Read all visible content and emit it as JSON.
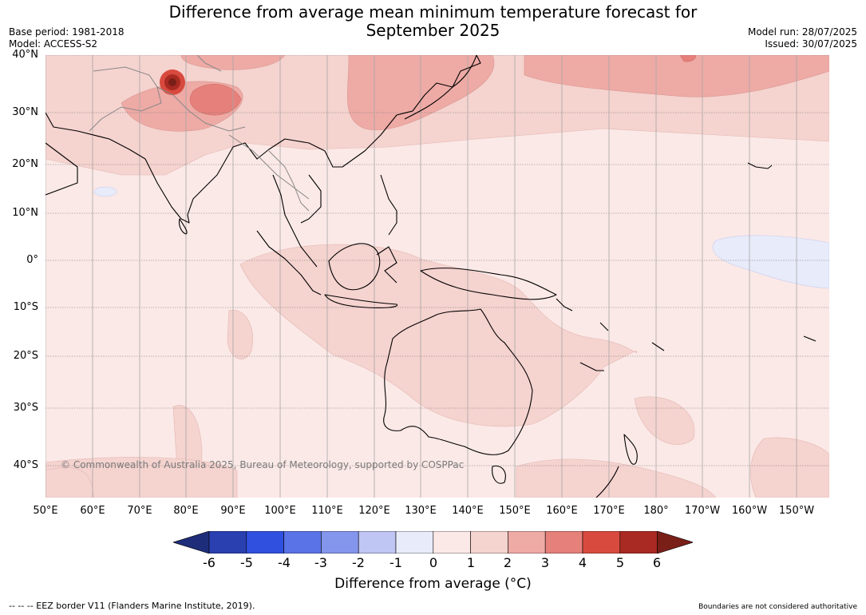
{
  "title_line1": "Difference from average mean minimum temperature forecast for",
  "title_line2": "September 2025",
  "base_period": "Base period: 1981-2018",
  "model": "Model: ACCESS-S2",
  "model_run": "Model run: 28/07/2025",
  "issued": "Issued: 30/07/2025",
  "copyright": "© Commonwealth of Australia 2025, Bureau of Meteorology, supported by COSPPac",
  "lat_labels": [
    "40°N",
    "30°N",
    "20°N",
    "10°N",
    "0°",
    "10°S",
    "20°S",
    "30°S",
    "40°S"
  ],
  "lon_labels": [
    "50°E",
    "60°E",
    "70°E",
    "80°E",
    "90°E",
    "100°E",
    "110°E",
    "120°E",
    "130°E",
    "140°E",
    "150°E",
    "160°E",
    "170°E",
    "180°",
    "170°W",
    "160°W",
    "150°W"
  ],
  "colorbar": {
    "ticks": [
      "-6",
      "-5",
      "-4",
      "-3",
      "-2",
      "-1",
      "0",
      "1",
      "2",
      "3",
      "4",
      "5",
      "6"
    ],
    "colors": [
      "#1e2d7a",
      "#2a3fb0",
      "#3050e0",
      "#5a73e6",
      "#8495ec",
      "#bfc6f4",
      "#e8ebfa",
      "#fbe9e7",
      "#f5d3cf",
      "#eeaaa5",
      "#e6807a",
      "#d84a3e",
      "#a82a22",
      "#7a1e18"
    ],
    "label": "Difference from average (°C)"
  },
  "footer_left": "--  --  -- EEZ border V11 (Flanders Marine Institute, 2019).",
  "footer_right": "Boundaries are not considered authoritative"
}
